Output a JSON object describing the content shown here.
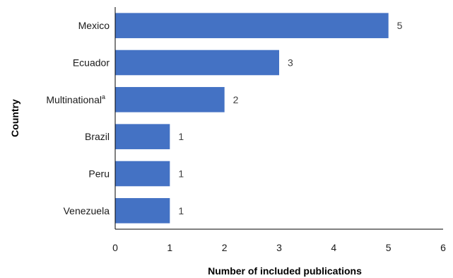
{
  "chart_data": {
    "type": "bar",
    "orientation": "horizontal",
    "categories": [
      "Mexico",
      "Ecuador",
      "Multinational",
      "Brazil",
      "Peru",
      "Venezuela"
    ],
    "category_superscripts": [
      "",
      "",
      "a",
      "",
      "",
      ""
    ],
    "values": [
      5,
      3,
      2,
      1,
      1,
      1
    ],
    "xlabel": "Number of included publications",
    "ylabel": "Country",
    "xlim": [
      0,
      6
    ],
    "xticks": [
      0,
      1,
      2,
      3,
      4,
      5,
      6
    ],
    "grid": false,
    "bar_color": "#4472C4",
    "data_labels": true
  }
}
